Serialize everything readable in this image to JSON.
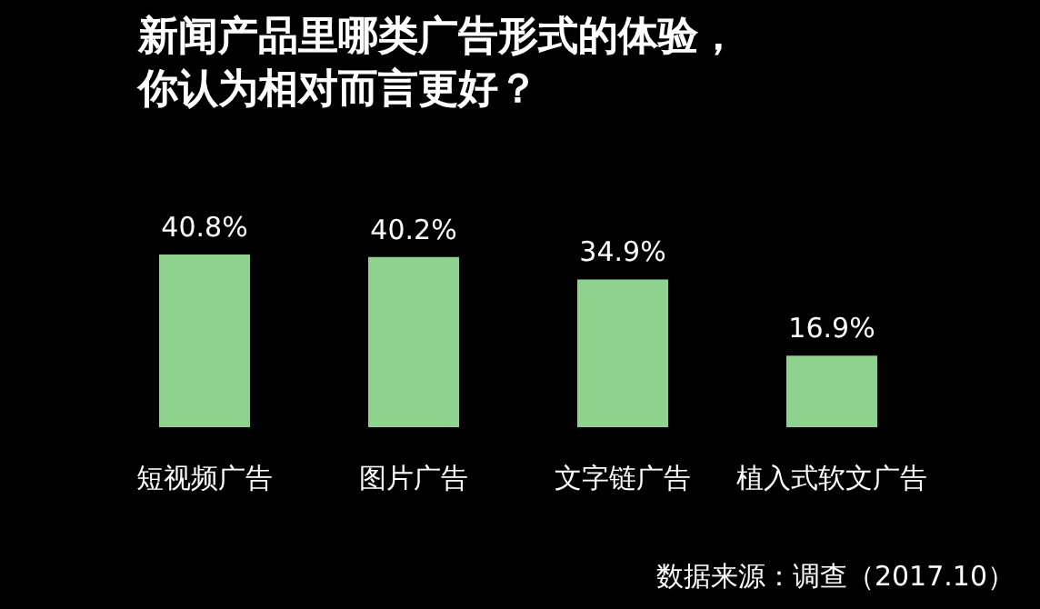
{
  "chart_data": {
    "type": "bar",
    "title": "新闻产品里哪类广告形式的体验，你认为相对而言更好？",
    "categories": [
      "短视频广告",
      "图片广告",
      "文字链广告",
      "植入式软文广告"
    ],
    "values": [
      40.8,
      40.2,
      34.9,
      16.9
    ],
    "value_labels": [
      "40.8%",
      "40.2%",
      "34.9%",
      "16.9%"
    ],
    "color": "#8fd18f",
    "annotations": [
      "数据来源：调查（2017.10）"
    ]
  }
}
